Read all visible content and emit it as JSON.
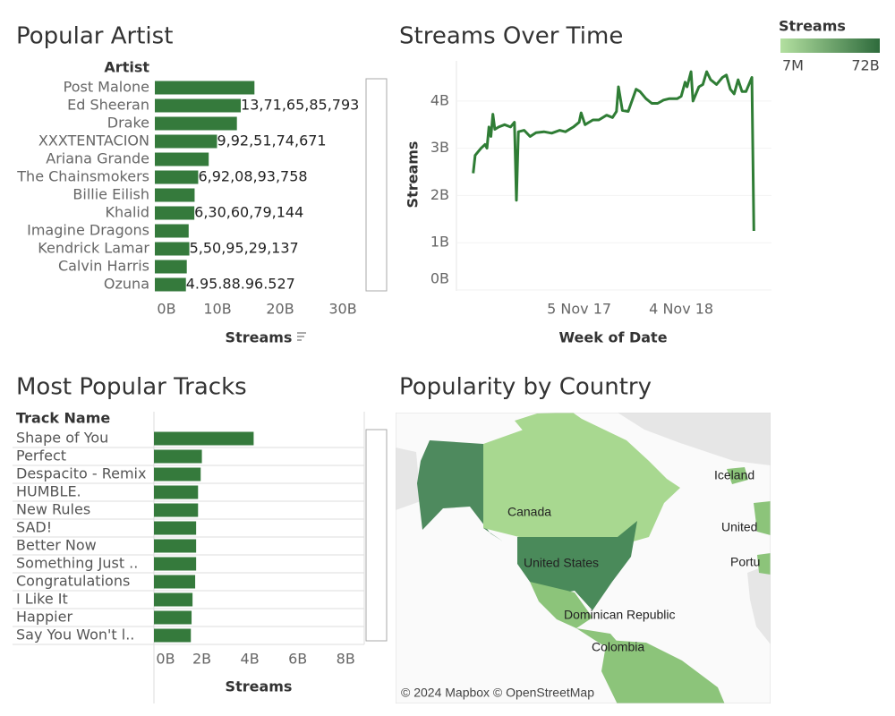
{
  "chart_data": [
    {
      "type": "bar",
      "orientation": "horizontal",
      "title": "Popular Artist",
      "category_label": "Artist",
      "x_label": "Streams",
      "categories": [
        "Post Malone",
        "Ed Sheeran",
        "Drake",
        "XXXTENTACION",
        "Ariana Grande",
        "The Chainsmokers",
        "Billie Eilish",
        "Khalid",
        "Imagine Dragons",
        "Kendrick Lamar",
        "Calvin Harris",
        "Ozuna"
      ],
      "values": [
        15.9,
        13.716585793,
        13.1,
        9.925174671,
        8.6,
        6.920893758,
        6.35,
        6.306079144,
        5.4,
        5.509529137,
        5.1,
        4.958896527
      ],
      "value_labels": [
        null,
        "13,71,65,85,793",
        null,
        "9,92,51,74,671",
        null,
        "6,92,08,93,758",
        null,
        "6,30,60,79,144",
        null,
        "5,50,95,29,137",
        null,
        "4.95.88.96.527"
      ],
      "color": "#357a3c",
      "xlim": [
        0,
        33
      ],
      "xticks": [
        {
          "value": 0,
          "label": "0B"
        },
        {
          "value": 10,
          "label": "10B"
        },
        {
          "value": 20,
          "label": "20B"
        },
        {
          "value": 30,
          "label": "30B"
        }
      ]
    },
    {
      "type": "bar",
      "orientation": "horizontal",
      "title": "Most Popular Tracks",
      "category_label": "Track Name",
      "x_label": "Streams",
      "categories": [
        "Shape of You",
        "Perfect",
        "Despacito - Remix",
        "HUMBLE.",
        "New Rules",
        "SAD!",
        "Better Now",
        "Something Just ..",
        "Congratulations",
        "I Like It",
        "Happier",
        "Say You Won't l.."
      ],
      "values": [
        4.16,
        2.0,
        1.95,
        1.84,
        1.84,
        1.76,
        1.76,
        1.76,
        1.72,
        1.61,
        1.57,
        1.54
      ],
      "color": "#357a3c",
      "xlim": [
        0,
        8.7
      ],
      "xticks": [
        {
          "value": 0,
          "label": "0B"
        },
        {
          "value": 2,
          "label": "2B"
        },
        {
          "value": 4,
          "label": "4B"
        },
        {
          "value": 6,
          "label": "6B"
        },
        {
          "value": 8,
          "label": "8B"
        }
      ]
    },
    {
      "type": "line",
      "title": "Streams Over Time",
      "x_label": "Week of Date",
      "y_label": "Streams",
      "color": "#2f7d35",
      "x": [
        "2016-10-23",
        "2016-10-30",
        "2016-11-20",
        "2016-12-04",
        "2016-12-11",
        "2016-12-18",
        "2016-12-25",
        "2017-01-01",
        "2017-01-08",
        "2017-01-22",
        "2017-02-12",
        "2017-03-05",
        "2017-03-19",
        "2017-03-26",
        "2017-04-02",
        "2017-04-23",
        "2017-05-14",
        "2017-06-04",
        "2017-07-02",
        "2017-07-30",
        "2017-08-27",
        "2017-09-17",
        "2017-10-15",
        "2017-11-05",
        "2017-11-12",
        "2017-11-26",
        "2017-12-10",
        "2017-12-24",
        "2018-01-14",
        "2018-02-11",
        "2018-03-04",
        "2018-03-18",
        "2018-03-25",
        "2018-04-08",
        "2018-04-29",
        "2018-05-27",
        "2018-06-10",
        "2018-07-01",
        "2018-07-22",
        "2018-08-12",
        "2018-09-02",
        "2018-09-23",
        "2018-10-21",
        "2018-11-04",
        "2018-11-18",
        "2018-11-25",
        "2018-12-09",
        "2018-12-16",
        "2019-01-06",
        "2019-01-20",
        "2019-02-03",
        "2019-02-17",
        "2019-03-10",
        "2019-03-31",
        "2019-04-14",
        "2019-04-28",
        "2019-05-12",
        "2019-05-26",
        "2019-06-09",
        "2019-06-23",
        "2019-07-14",
        "2019-07-21"
      ],
      "values": [
        2.47,
        2.85,
        3.0,
        3.08,
        3.0,
        3.45,
        3.25,
        3.72,
        3.4,
        3.45,
        3.5,
        3.45,
        3.55,
        1.9,
        3.35,
        3.38,
        3.25,
        3.33,
        3.35,
        3.32,
        3.38,
        3.35,
        3.45,
        3.55,
        3.75,
        3.5,
        3.55,
        3.6,
        3.6,
        3.7,
        3.65,
        3.78,
        4.3,
        3.8,
        3.78,
        4.25,
        4.2,
        4.05,
        3.95,
        3.95,
        4.02,
        4.05,
        4.05,
        4.1,
        4.4,
        4.3,
        4.62,
        4.0,
        4.3,
        4.35,
        4.62,
        4.45,
        4.35,
        4.5,
        4.55,
        4.25,
        4.15,
        4.45,
        4.2,
        4.2,
        4.5,
        1.25
      ],
      "xlim": [
        "2016-08-21",
        "2019-09-22"
      ],
      "xticks": [
        {
          "value": "2017-11-05",
          "label": "5 Nov 17"
        },
        {
          "value": "2018-11-04",
          "label": "4 Nov 18"
        }
      ],
      "ylim": [
        0,
        4.85
      ],
      "yticks": [
        {
          "value": 0,
          "label": "0B"
        },
        {
          "value": 1,
          "label": "1B"
        },
        {
          "value": 2,
          "label": "2B"
        },
        {
          "value": 3,
          "label": "3B"
        },
        {
          "value": 4,
          "label": "4B"
        }
      ]
    },
    {
      "type": "map",
      "title": "Popularity by Country",
      "labels": [
        "Canada",
        "United States",
        "Iceland",
        "United",
        "Portu",
        "Dominican Republic",
        "Colombia"
      ],
      "attribution": "© 2024 Mapbox © OpenStreetMap",
      "legend": {
        "title": "Streams",
        "min_label": "7M",
        "max_label": "72B"
      }
    }
  ]
}
